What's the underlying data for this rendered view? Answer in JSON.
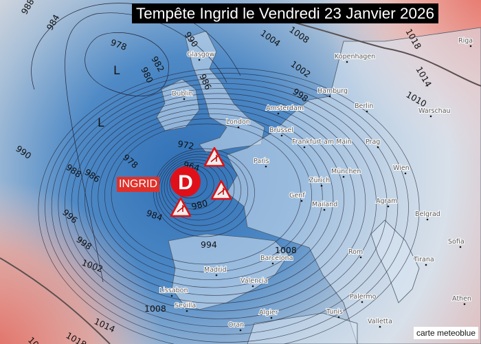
{
  "title": "Tempête Ingrid le Vendredi 23 Janvier 2026",
  "credit": "carte meteoblue",
  "storm": {
    "name": "INGRID",
    "symbol": "D",
    "color": "#e0101a"
  },
  "lows": [
    "L",
    "L"
  ],
  "warning_icon": "wind-warning-icon",
  "isobar_labels": [
    "988",
    "984",
    "978",
    "982",
    "980",
    "986",
    "990",
    "972",
    "964",
    "978",
    "990",
    "988",
    "986",
    "996",
    "998",
    "1002",
    "984",
    "980",
    "994",
    "1004",
    "1008",
    "1002",
    "998",
    "1010",
    "1014",
    "1018",
    "1008",
    "1008",
    "1014",
    "1018",
    "1018"
  ],
  "cities": [
    "Glasgow",
    "Dublin",
    "London",
    "Amsterdam",
    "Brüssel",
    "Paris",
    "Hamburg",
    "Kopenhagen",
    "Berlin",
    "Warschau",
    "Frankfurt am Main",
    "Prag",
    "München",
    "Zürich",
    "Genf",
    "Mailand",
    "Agram",
    "Belgrad",
    "Sofia",
    "Tirana",
    "Rom",
    "Barcelona",
    "Madrid",
    "Valencia",
    "Lissabon",
    "Sevilla",
    "Algier",
    "Tunis",
    "Palermo",
    "Valletta",
    "Oran",
    "Athen",
    "Riga",
    "Wien"
  ],
  "colors": {
    "low_pressure": "#3f7fc0",
    "high_pressure": "#e07a70",
    "land": "#dfe8f3",
    "title_bg": "#000000"
  }
}
